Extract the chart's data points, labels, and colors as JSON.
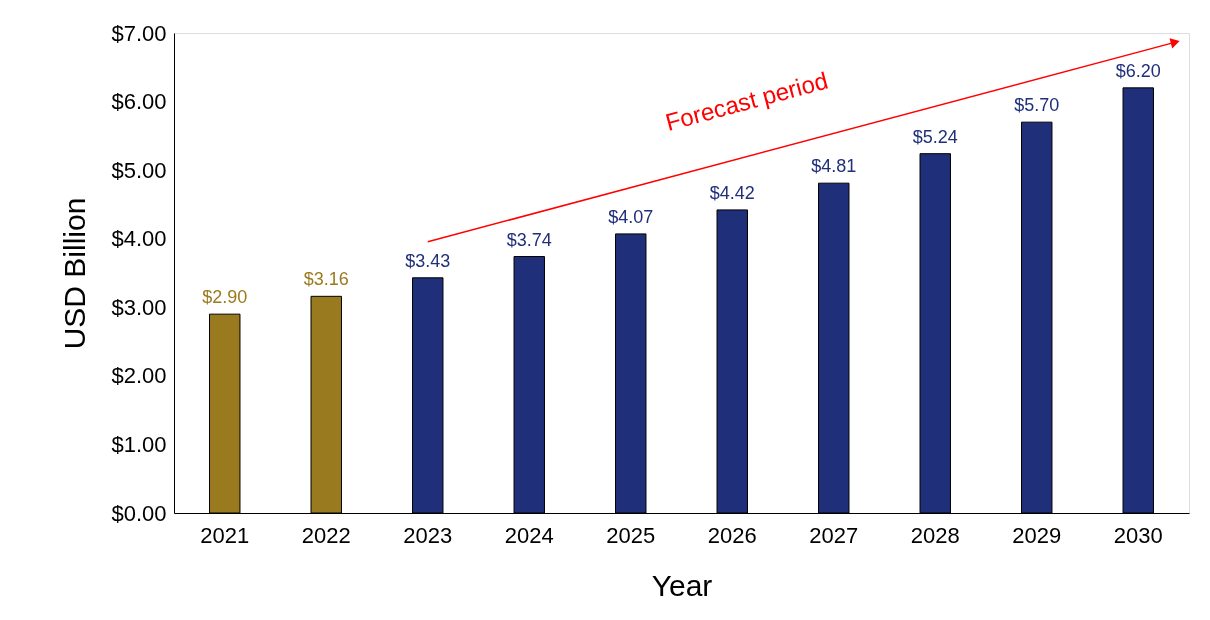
{
  "chart_data": {
    "type": "bar",
    "xlabel": "Year",
    "ylabel": "USD Billion",
    "categories": [
      "2021",
      "2022",
      "2023",
      "2024",
      "2025",
      "2026",
      "2027",
      "2028",
      "2029",
      "2030"
    ],
    "values": [
      2.9,
      3.16,
      3.43,
      3.74,
      4.07,
      4.42,
      4.81,
      5.24,
      5.7,
      6.2
    ],
    "colors": [
      "#9a7a1e",
      "#9a7a1e",
      "#1f2f7a",
      "#1f2f7a",
      "#1f2f7a",
      "#1f2f7a",
      "#1f2f7a",
      "#1f2f7a",
      "#1f2f7a",
      "#1f2f7a"
    ],
    "value_labels": [
      "$2.90",
      "$3.16",
      "$3.43",
      "$3.74",
      "$4.07",
      "$4.42",
      "$4.81",
      "$5.24",
      "$5.70",
      "$6.20"
    ],
    "ylim": [
      0,
      7
    ],
    "yticks": [
      {
        "value": 0,
        "label": "$0.00"
      },
      {
        "value": 1,
        "label": "$1.00"
      },
      {
        "value": 2,
        "label": "$2.00"
      },
      {
        "value": 3,
        "label": "$3.00"
      },
      {
        "value": 4,
        "label": "$4.00"
      },
      {
        "value": 5,
        "label": "$5.00"
      },
      {
        "value": 6,
        "label": "$6.00"
      },
      {
        "value": 7,
        "label": "$7.00"
      }
    ],
    "annotations": [
      "Forecast period"
    ],
    "grid": false
  }
}
